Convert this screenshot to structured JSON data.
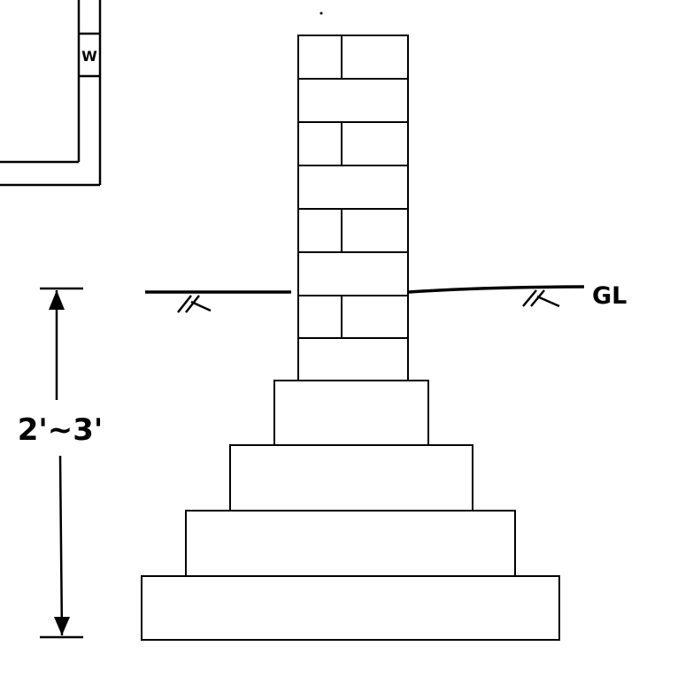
{
  "labels": {
    "window": "W",
    "ground_level": "GL",
    "depth": "2'~3'"
  },
  "colors": {
    "ink": "#000000",
    "paper": "#ffffff"
  },
  "wall": {
    "courses": 8
  },
  "footing": {
    "steps": 4
  }
}
